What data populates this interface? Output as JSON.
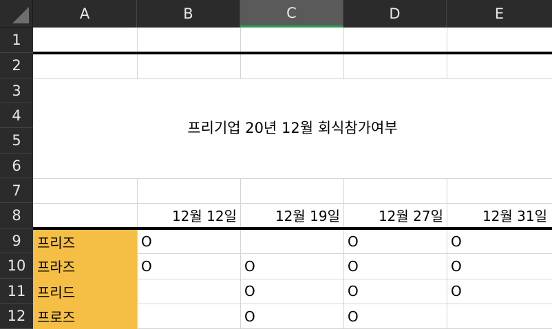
{
  "columns": [
    "A",
    "B",
    "C",
    "D",
    "E"
  ],
  "selected_column": "C",
  "rows": [
    "1",
    "2",
    "3",
    "4",
    "5",
    "6",
    "7",
    "8",
    "9",
    "10",
    "11",
    "12"
  ],
  "title": "프리기업 20년 12월 회식참가여부",
  "dates": [
    "12월 12일",
    "12월 19일",
    "12월 27일",
    "12월 31일"
  ],
  "names": [
    "프리즈",
    "프라즈",
    "프리드",
    "프로즈"
  ],
  "attendance": [
    [
      "O",
      "",
      "O",
      "O"
    ],
    [
      "O",
      "O",
      "O",
      "O"
    ],
    [
      "",
      "O",
      "O",
      "O"
    ],
    [
      "",
      "O",
      "O",
      ""
    ]
  ],
  "colors": {
    "header_bg": "#2b2b2b",
    "selected_header": "#5a5a5a",
    "selection_accent": "#2e9e57",
    "name_fill": "#f5bf45"
  }
}
